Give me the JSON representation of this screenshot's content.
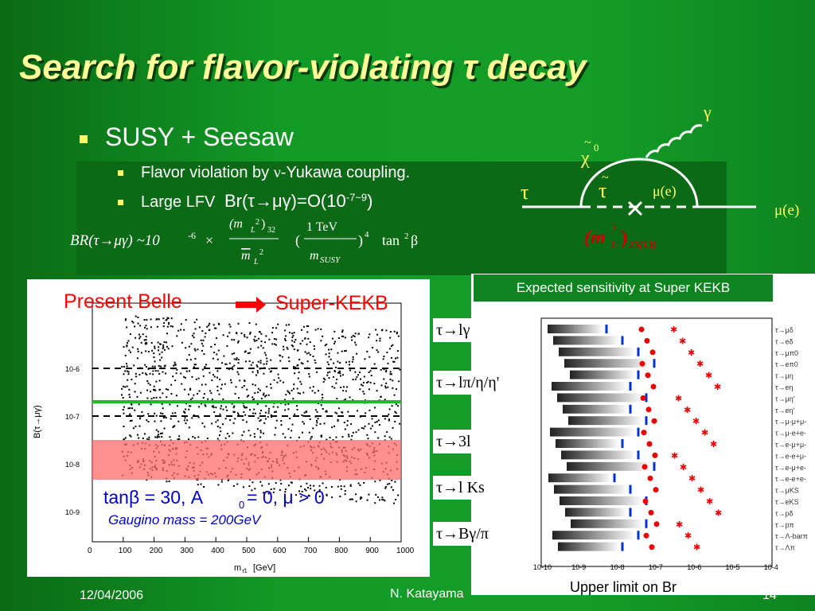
{
  "title": "Search for flavor-violating τ decay",
  "bullets": {
    "main": "SUSY + Seesaw",
    "sub1_pre": "Flavor violation by ",
    "sub1_sym": "ν",
    "sub1_post": "-Yukawa coupling.",
    "sub2_pre": "Large LFV ",
    "sub2_br": "Br(τ→μγ)=O(10",
    "sub2_exp": "-7~9",
    "sub2_close": ")"
  },
  "formula": {
    "lhs": "BR(τ→μγ) ~10",
    "exp": "-6",
    "times": "×",
    "tev": "1 TeV",
    "msusy": "m",
    "msusy_sub": "SUSY",
    "power": "4",
    "tan": "tan",
    "tanexp": "2",
    "beta": "β"
  },
  "feynman": {
    "gamma": "γ",
    "chi": "χ",
    "chi_sup": "0",
    "tau": "τ",
    "stau": "τ",
    "smu": "μ(e)",
    "mue": "μ(e)",
    "mass": "(m",
    "mass_sup": "2",
    "mass_l": "L",
    "mass_sub": "23(13)"
  },
  "left_plot": {
    "present": "Present Belle",
    "super": "Super-KEKB",
    "params": "tanβ = 30, A",
    "params_sub": "0",
    "params_post": " = 0, μ > 0",
    "gaugino": "Gaugino mass = 200GeV",
    "ylabel": "B(τ→μγ)",
    "xlabel": "m",
    "xlabel_sub": "τ̃1",
    "xlabel_unit": " [GeV]",
    "xticks": [
      "0",
      "100",
      "200",
      "300",
      "400",
      "500",
      "600",
      "700",
      "800",
      "900",
      "1000"
    ],
    "yticks": [
      "10-6",
      "10-7",
      "10-8",
      "10-9"
    ]
  },
  "right_plot": {
    "header": "Expected sensitivity at Super KEKB",
    "xlabel": "Upper limit on Br",
    "xticks": [
      "10-10",
      "10-9",
      "10-8",
      "10-7",
      "10-6",
      "10-5",
      "10-4"
    ],
    "groups": [
      "τ→lγ",
      "τ→lπ/η/η'",
      "τ→3l",
      "τ→l Ks",
      "τ→Bγ/π"
    ],
    "modes": [
      "τ→μδ",
      "τ→eδ",
      "τ→μπ0",
      "τ→eπ0",
      "τ→μη",
      "τ→eη",
      "τ→μη'",
      "τ→eη'",
      "τ→μ-μ+μ-",
      "τ→μ-e+e-",
      "τ→e-μ+μ-",
      "τ→e-e+μ-",
      "τ→e-μ+e-",
      "τ→e-e+e-",
      "τ→μKS",
      "τ→eKS",
      "τ→pδ",
      "τ→pπ",
      "τ→Λ-barπ",
      "τ→Λπ"
    ]
  },
  "footer": {
    "date": "12/04/2006",
    "author": "N. Katayama",
    "page": "14"
  },
  "colors": {
    "title": "#ffff99",
    "bullet": "#ffff66",
    "red": "#ff0000",
    "band": "#ff6b6b"
  }
}
